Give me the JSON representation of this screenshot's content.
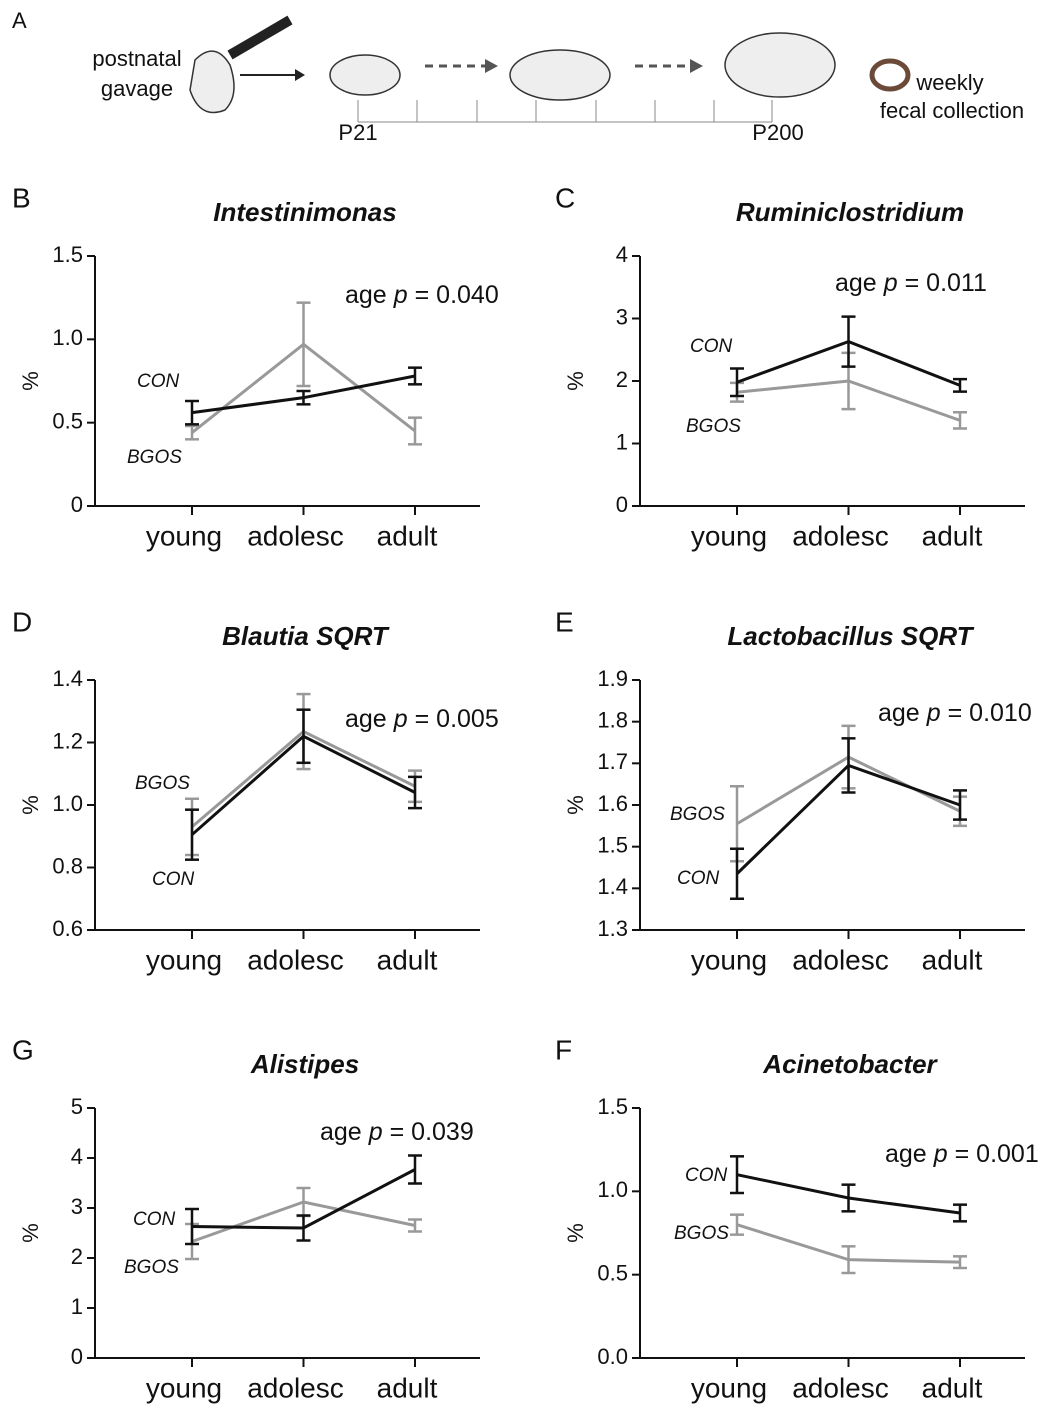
{
  "diagram": {
    "panel": "A",
    "gavage": [
      "postnatal",
      "gavage"
    ],
    "collection": [
      "weekly",
      "fecal collection"
    ],
    "start": "P21",
    "end": "P200"
  },
  "chart_data": [
    {
      "type": "line",
      "panel": "B",
      "title": "Intestinimonas",
      "y_label": "%",
      "annotation": [
        "age",
        "p",
        "= 0.040"
      ],
      "categories": [
        "young",
        "adolesc",
        "adult"
      ],
      "ylim": [
        0,
        1.5
      ],
      "yticks": [
        0,
        0.5,
        {
          "value": 1,
          "label": "1.0"
        },
        1.5
      ],
      "series": [
        {
          "name": "CON",
          "color": "#111111",
          "values": [
            0.56,
            0.65,
            0.78
          ],
          "errors": [
            0.07,
            0.04,
            0.05
          ]
        },
        {
          "name": "BGOS",
          "color": "#999999",
          "values": [
            0.44,
            0.97,
            0.45
          ],
          "errors": [
            0.04,
            0.25,
            0.08
          ]
        }
      ]
    },
    {
      "type": "line",
      "panel": "C",
      "title": "Ruminiclostridium",
      "y_label": "%",
      "annotation": [
        "age",
        "p",
        "= 0.011"
      ],
      "categories": [
        "young",
        "adolesc",
        "adult"
      ],
      "ylim": [
        0,
        4
      ],
      "yticks": [
        0,
        1,
        2,
        3,
        4
      ],
      "series": [
        {
          "name": "CON",
          "color": "#111111",
          "values": [
            1.98,
            2.63,
            1.93
          ],
          "errors": [
            0.22,
            0.4,
            0.1
          ]
        },
        {
          "name": "BGOS",
          "color": "#999999",
          "values": [
            1.82,
            2.0,
            1.37
          ],
          "errors": [
            0.15,
            0.45,
            0.13
          ]
        }
      ]
    },
    {
      "type": "line",
      "panel": "D",
      "title": "Blautia SQRT",
      "y_label": "%",
      "annotation": [
        "age",
        "p",
        "= 0.005"
      ],
      "categories": [
        "young",
        "adolesc",
        "adult"
      ],
      "ylim": [
        0.6,
        1.4
      ],
      "yticks": [
        0.6,
        0.8,
        {
          "value": 1,
          "label": "1.0"
        },
        1.2,
        1.4
      ],
      "series": [
        {
          "name": "CON",
          "color": "#111111",
          "values": [
            0.905,
            1.22,
            1.04
          ],
          "errors": [
            0.08,
            0.085,
            0.05
          ]
        },
        {
          "name": "BGOS",
          "color": "#999999",
          "values": [
            0.93,
            1.235,
            1.06
          ],
          "errors": [
            0.09,
            0.12,
            0.05
          ]
        }
      ]
    },
    {
      "type": "line",
      "panel": "E",
      "title": "Lactobacillus SQRT",
      "y_label": "%",
      "annotation": [
        "age",
        "p",
        "= 0.010"
      ],
      "categories": [
        "young",
        "adolesc",
        "adult"
      ],
      "ylim": [
        1.3,
        1.9
      ],
      "yticks": [
        1.3,
        1.4,
        1.5,
        1.6,
        1.7,
        1.8,
        1.9
      ],
      "series": [
        {
          "name": "CON",
          "color": "#111111",
          "values": [
            1.435,
            1.695,
            1.6
          ],
          "errors": [
            0.06,
            0.065,
            0.035
          ]
        },
        {
          "name": "BGOS",
          "color": "#999999",
          "values": [
            1.555,
            1.715,
            1.585
          ],
          "errors": [
            0.09,
            0.075,
            0.035
          ]
        }
      ]
    },
    {
      "type": "line",
      "panel": "G",
      "title": "Alistipes",
      "y_label": "%",
      "annotation": [
        "age",
        "p",
        "= 0.039"
      ],
      "categories": [
        "young",
        "adolesc",
        "adult"
      ],
      "ylim": [
        0,
        5
      ],
      "yticks": [
        0,
        1,
        2,
        3,
        4,
        5
      ],
      "series": [
        {
          "name": "CON",
          "color": "#111111",
          "values": [
            2.63,
            2.6,
            3.77
          ],
          "errors": [
            0.35,
            0.25,
            0.28
          ]
        },
        {
          "name": "BGOS",
          "color": "#999999",
          "values": [
            2.33,
            3.12,
            2.65
          ],
          "errors": [
            0.35,
            0.28,
            0.12
          ]
        }
      ]
    },
    {
      "type": "line",
      "panel": "F",
      "title": "Acinetobacter",
      "y_label": "%",
      "annotation": [
        "age",
        "p",
        "= 0.001"
      ],
      "categories": [
        "young",
        "adolesc",
        "adult"
      ],
      "ylim": [
        0,
        1.5
      ],
      "yticks": [
        {
          "value": 0,
          "label": "0.0"
        },
        0.5,
        {
          "value": 1,
          "label": "1.0"
        },
        1.5
      ],
      "series": [
        {
          "name": "CON",
          "color": "#111111",
          "values": [
            1.1,
            0.96,
            0.87
          ],
          "errors": [
            0.11,
            0.08,
            0.05
          ]
        },
        {
          "name": "BGOS",
          "color": "#999999",
          "values": [
            0.8,
            0.59,
            0.575
          ],
          "errors": [
            0.06,
            0.08,
            0.035
          ]
        }
      ]
    }
  ]
}
